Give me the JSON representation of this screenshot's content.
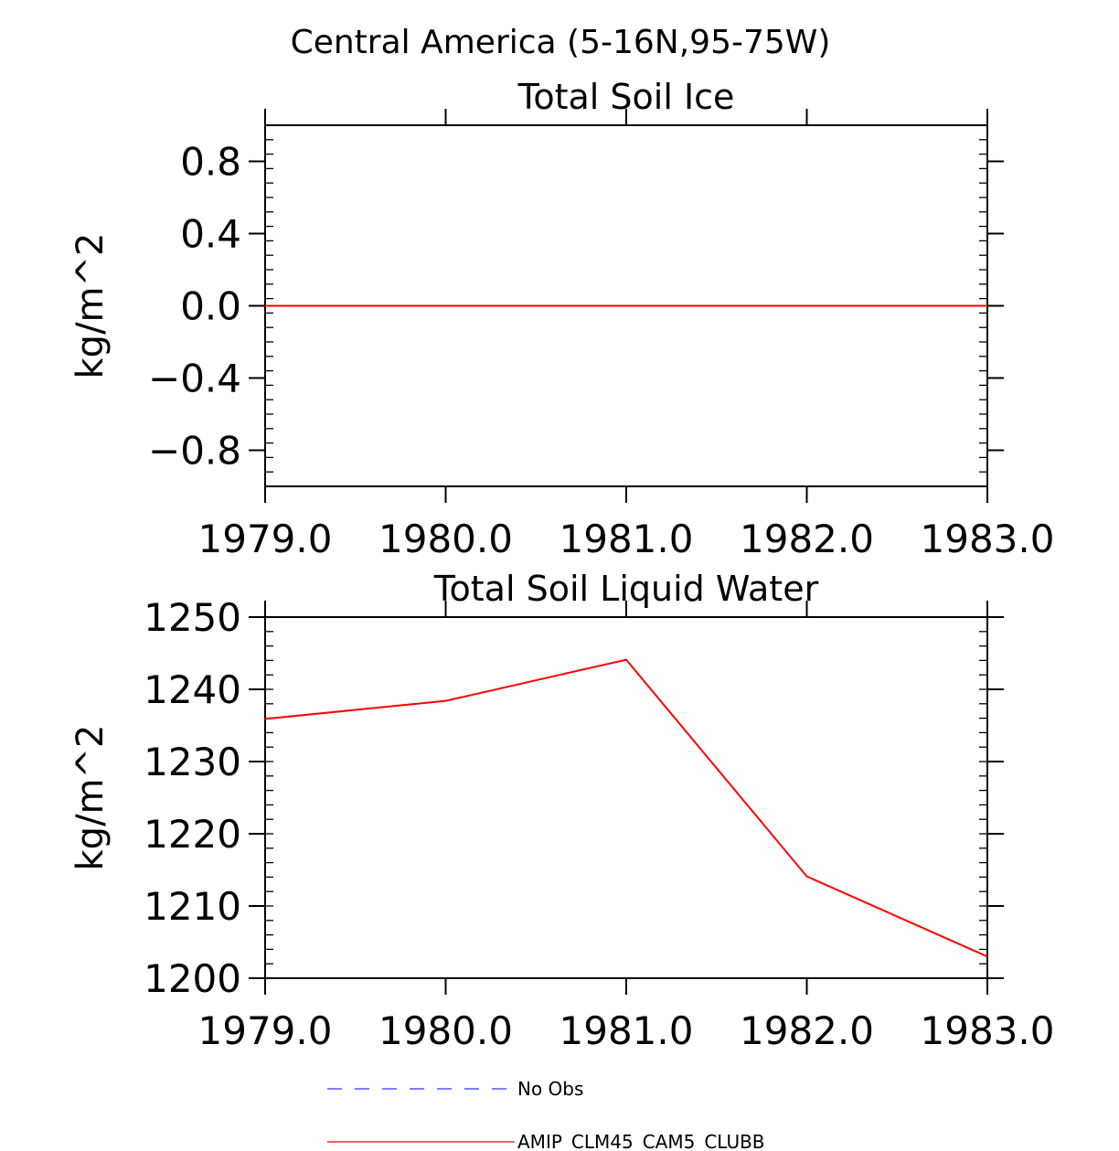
{
  "figure_title": "Central America (5-16N,95-75W)",
  "chart_data": [
    {
      "type": "line",
      "title": "Total Soil Ice",
      "xlabel": "",
      "ylabel": "kg/m^2",
      "xlim": [
        1979.0,
        1983.0
      ],
      "ylim": [
        -1.0,
        1.0
      ],
      "x_ticks": [
        1979.0,
        1980.0,
        1981.0,
        1982.0,
        1983.0
      ],
      "x_tick_labels": [
        "1979.0",
        "1980.0",
        "1981.0",
        "1982.0",
        "1983.0"
      ],
      "y_ticks": [
        0.8,
        0.4,
        0.0,
        -0.4,
        -0.8
      ],
      "y_tick_labels": [
        "0.8",
        "0.4",
        "0.0",
        "−0.4",
        "−0.8"
      ],
      "grid": false,
      "series": [
        {
          "name": "AMIP_CLM45_CAM5_CLUBB",
          "color": "#ff0000",
          "x": [
            1979.0,
            1980.0,
            1981.0,
            1982.0,
            1983.0
          ],
          "values": [
            0.0,
            0.0,
            0.0,
            0.0,
            0.0
          ]
        }
      ]
    },
    {
      "type": "line",
      "title": "Total Soil Liquid Water",
      "xlabel": "",
      "ylabel": "kg/m^2",
      "xlim": [
        1979.0,
        1983.0
      ],
      "ylim": [
        1200,
        1250
      ],
      "x_ticks": [
        1979.0,
        1980.0,
        1981.0,
        1982.0,
        1983.0
      ],
      "x_tick_labels": [
        "1979.0",
        "1980.0",
        "1981.0",
        "1982.0",
        "1983.0"
      ],
      "y_ticks": [
        1250,
        1240,
        1230,
        1220,
        1210,
        1200
      ],
      "y_tick_labels": [
        "1250",
        "1240",
        "1230",
        "1220",
        "1210",
        "1200"
      ],
      "grid": false,
      "series": [
        {
          "name": "AMIP_CLM45_CAM5_CLUBB",
          "color": "#ff0000",
          "x": [
            1979.0,
            1980.0,
            1981.0,
            1982.0,
            1983.0
          ],
          "values": [
            1235.9,
            1238.4,
            1244.1,
            1214.1,
            1203.0
          ]
        }
      ]
    }
  ],
  "legend": {
    "placement": "bottom",
    "items": [
      {
        "label": "No Obs",
        "color": "#3333ff",
        "style": "dashed"
      },
      {
        "label": "AMIP_CLM45_CAM5_CLUBB",
        "color": "#ff0000",
        "style": "solid"
      }
    ]
  }
}
